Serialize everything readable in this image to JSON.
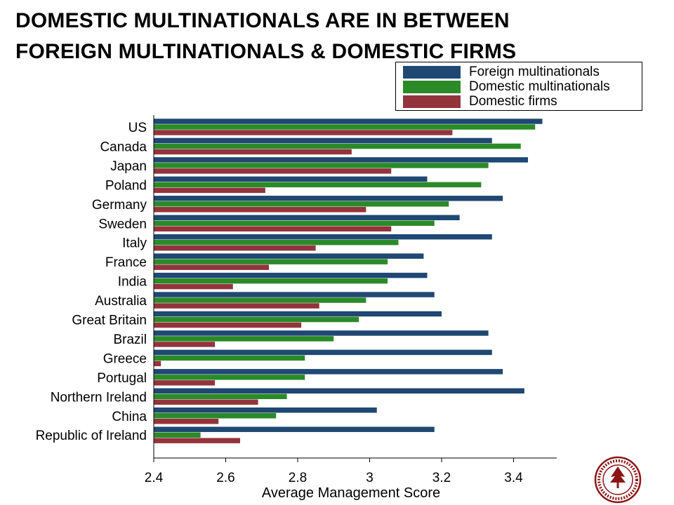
{
  "title": {
    "line1": "DOMESTIC MULTINATIONALS ARE IN BETWEEN",
    "line2": "FOREIGN MULTINATIONALS & DOMESTIC FIRMS"
  },
  "colors": {
    "foreign": "#1f4872",
    "domestic_mn": "#2b8a28",
    "domestic_firms": "#93343d",
    "axis": "#000000"
  },
  "logo": {
    "icon": "university-seal-icon"
  },
  "chart_data": {
    "type": "bar",
    "orientation": "horizontal",
    "title": "",
    "xlabel": "Average Management Score",
    "ylabel": "",
    "xlim": [
      2.4,
      3.52
    ],
    "xticks": [
      2.4,
      2.6,
      2.8,
      3,
      3.2,
      3.4
    ],
    "xtick_labels": [
      "2.4",
      "2.6",
      "2.8",
      "3",
      "3.2",
      "3.4"
    ],
    "grid": false,
    "legend_position": "top-right",
    "categories": [
      "US",
      "Canada",
      "Japan",
      "Poland",
      "Germany",
      "Sweden",
      "Italy",
      "France",
      "India",
      "Australia",
      "Great Britain",
      "Brazil",
      "Greece",
      "Portugal",
      "Northern Ireland",
      "China",
      "Republic of Ireland"
    ],
    "series": [
      {
        "name": "Foreign multinationals",
        "values": [
          3.48,
          3.34,
          3.44,
          3.16,
          3.37,
          3.25,
          3.34,
          3.15,
          3.16,
          3.18,
          3.2,
          3.33,
          3.34,
          3.37,
          3.43,
          3.02,
          3.18
        ]
      },
      {
        "name": "Domestic multinationals",
        "values": [
          3.46,
          3.42,
          3.33,
          3.31,
          3.22,
          3.18,
          3.08,
          3.05,
          3.05,
          2.99,
          2.97,
          2.9,
          2.82,
          2.82,
          2.77,
          2.74,
          2.53
        ]
      },
      {
        "name": "Domestic firms",
        "values": [
          3.23,
          2.95,
          3.06,
          2.71,
          2.99,
          3.06,
          2.85,
          2.72,
          2.62,
          2.86,
          2.81,
          2.57,
          2.42,
          2.57,
          2.69,
          2.58,
          2.64
        ]
      }
    ]
  }
}
